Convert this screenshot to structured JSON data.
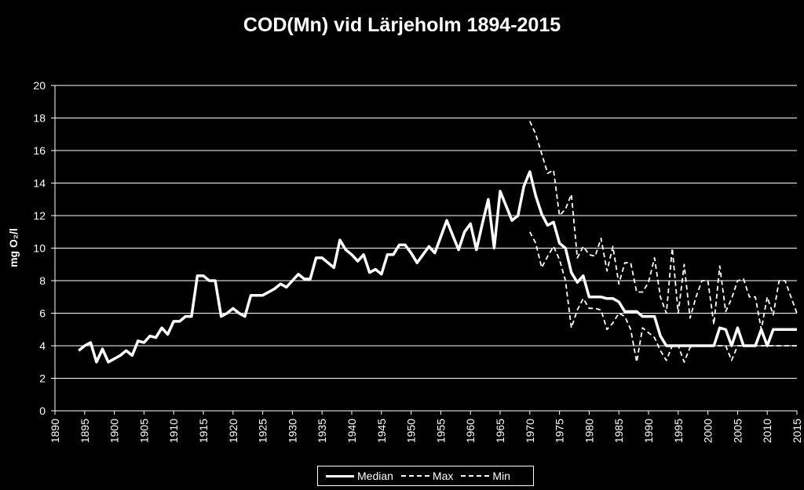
{
  "chart_data": {
    "type": "line",
    "title": "COD(Mn) vid Lärjeholm 1894-2015",
    "ylabel": "mg O₂/l",
    "xlabel": "",
    "xlim": [
      1890,
      2015
    ],
    "ylim": [
      0,
      20
    ],
    "yticks": [
      0,
      2,
      4,
      6,
      8,
      10,
      12,
      14,
      16,
      18,
      20
    ],
    "xticks": [
      1890,
      1895,
      1900,
      1905,
      1910,
      1915,
      1920,
      1925,
      1930,
      1935,
      1940,
      1945,
      1950,
      1955,
      1960,
      1965,
      1970,
      1975,
      1980,
      1985,
      1990,
      1995,
      2000,
      2005,
      2010,
      2015
    ],
    "grid": "horizontal",
    "legend_position": "bottom",
    "series": [
      {
        "name": "Median",
        "style": "solid",
        "points": [
          [
            1894,
            3.7
          ],
          [
            1895,
            4.0
          ],
          [
            1896,
            4.2
          ],
          [
            1897,
            3.0
          ],
          [
            1898,
            3.8
          ],
          [
            1899,
            3.0
          ],
          [
            1900,
            3.2
          ],
          [
            1901,
            3.4
          ],
          [
            1902,
            3.7
          ],
          [
            1903,
            3.4
          ],
          [
            1904,
            4.3
          ],
          [
            1905,
            4.2
          ],
          [
            1906,
            4.6
          ],
          [
            1907,
            4.5
          ],
          [
            1908,
            5.1
          ],
          [
            1909,
            4.7
          ],
          [
            1910,
            5.5
          ],
          [
            1911,
            5.5
          ],
          [
            1912,
            5.8
          ],
          [
            1913,
            5.8
          ],
          [
            1914,
            8.3
          ],
          [
            1915,
            8.3
          ],
          [
            1916,
            8.0
          ],
          [
            1917,
            8.0
          ],
          [
            1918,
            5.8
          ],
          [
            1919,
            6.0
          ],
          [
            1920,
            6.3
          ],
          [
            1921,
            6.0
          ],
          [
            1922,
            5.8
          ],
          [
            1923,
            7.1
          ],
          [
            1924,
            7.1
          ],
          [
            1925,
            7.1
          ],
          [
            1926,
            7.3
          ],
          [
            1927,
            7.5
          ],
          [
            1928,
            7.8
          ],
          [
            1929,
            7.6
          ],
          [
            1930,
            8.0
          ],
          [
            1931,
            8.4
          ],
          [
            1932,
            8.1
          ],
          [
            1933,
            8.1
          ],
          [
            1934,
            9.4
          ],
          [
            1935,
            9.4
          ],
          [
            1936,
            9.1
          ],
          [
            1937,
            8.8
          ],
          [
            1938,
            10.5
          ],
          [
            1939,
            9.9
          ],
          [
            1940,
            9.6
          ],
          [
            1941,
            9.2
          ],
          [
            1942,
            9.6
          ],
          [
            1943,
            8.5
          ],
          [
            1944,
            8.7
          ],
          [
            1945,
            8.4
          ],
          [
            1946,
            9.6
          ],
          [
            1947,
            9.6
          ],
          [
            1948,
            10.2
          ],
          [
            1949,
            10.2
          ],
          [
            1950,
            9.7
          ],
          [
            1951,
            9.1
          ],
          [
            1952,
            9.6
          ],
          [
            1953,
            10.1
          ],
          [
            1954,
            9.7
          ],
          [
            1955,
            10.7
          ],
          [
            1956,
            11.7
          ],
          [
            1957,
            10.8
          ],
          [
            1958,
            9.9
          ],
          [
            1959,
            11.0
          ],
          [
            1960,
            11.5
          ],
          [
            1961,
            9.9
          ],
          [
            1962,
            11.5
          ],
          [
            1963,
            13.0
          ],
          [
            1964,
            10.0
          ],
          [
            1965,
            13.5
          ],
          [
            1966,
            12.6
          ],
          [
            1967,
            11.7
          ],
          [
            1968,
            12.0
          ],
          [
            1969,
            13.8
          ],
          [
            1970,
            14.7
          ],
          [
            1971,
            13.2
          ],
          [
            1972,
            12.1
          ],
          [
            1973,
            11.4
          ],
          [
            1974,
            11.6
          ],
          [
            1975,
            10.3
          ],
          [
            1976,
            10.0
          ],
          [
            1977,
            8.5
          ],
          [
            1978,
            7.9
          ],
          [
            1979,
            8.3
          ],
          [
            1980,
            7.0
          ],
          [
            1981,
            7.0
          ],
          [
            1982,
            7.0
          ],
          [
            1983,
            6.9
          ],
          [
            1984,
            6.9
          ],
          [
            1985,
            6.7
          ],
          [
            1986,
            6.1
          ],
          [
            1987,
            6.1
          ],
          [
            1988,
            6.1
          ],
          [
            1989,
            5.8
          ],
          [
            1990,
            5.8
          ],
          [
            1991,
            5.8
          ],
          [
            1992,
            4.6
          ],
          [
            1993,
            4.0
          ],
          [
            1994,
            4.0
          ],
          [
            1995,
            4.0
          ],
          [
            1996,
            4.0
          ],
          [
            1997,
            4.0
          ],
          [
            1998,
            4.0
          ],
          [
            1999,
            4.0
          ],
          [
            2000,
            4.0
          ],
          [
            2001,
            4.0
          ],
          [
            2002,
            5.1
          ],
          [
            2003,
            5.0
          ],
          [
            2004,
            4.0
          ],
          [
            2005,
            5.1
          ],
          [
            2006,
            4.0
          ],
          [
            2007,
            4.0
          ],
          [
            2008,
            4.0
          ],
          [
            2009,
            5.0
          ],
          [
            2010,
            4.0
          ],
          [
            2011,
            5.0
          ],
          [
            2012,
            5.0
          ],
          [
            2013,
            5.0
          ],
          [
            2014,
            5.0
          ],
          [
            2015,
            5.0
          ]
        ]
      },
      {
        "name": "Max",
        "style": "dashed",
        "points": [
          [
            1970,
            17.8
          ],
          [
            1971,
            17.0
          ],
          [
            1972,
            15.8
          ],
          [
            1973,
            14.6
          ],
          [
            1974,
            14.8
          ],
          [
            1975,
            12.0
          ],
          [
            1976,
            12.4
          ],
          [
            1977,
            13.3
          ],
          [
            1978,
            9.4
          ],
          [
            1979,
            10.1
          ],
          [
            1980,
            9.6
          ],
          [
            1981,
            9.5
          ],
          [
            1982,
            10.6
          ],
          [
            1983,
            8.6
          ],
          [
            1984,
            10.1
          ],
          [
            1985,
            7.8
          ],
          [
            1986,
            9.1
          ],
          [
            1987,
            9.1
          ],
          [
            1988,
            7.3
          ],
          [
            1989,
            7.3
          ],
          [
            1990,
            7.9
          ],
          [
            1991,
            9.4
          ],
          [
            1992,
            7.0
          ],
          [
            1993,
            6.0
          ],
          [
            1994,
            10.0
          ],
          [
            1995,
            6.0
          ],
          [
            1996,
            9.0
          ],
          [
            1997,
            5.7
          ],
          [
            1998,
            7.0
          ],
          [
            1999,
            8.0
          ],
          [
            2000,
            8.0
          ],
          [
            2001,
            5.3
          ],
          [
            2002,
            8.9
          ],
          [
            2003,
            6.1
          ],
          [
            2004,
            6.9
          ],
          [
            2005,
            8.0
          ],
          [
            2006,
            8.1
          ],
          [
            2007,
            7.0
          ],
          [
            2008,
            7.0
          ],
          [
            2009,
            5.0
          ],
          [
            2010,
            7.0
          ],
          [
            2011,
            5.9
          ],
          [
            2012,
            8.0
          ],
          [
            2013,
            8.0
          ],
          [
            2014,
            7.0
          ],
          [
            2015,
            6.0
          ]
        ]
      },
      {
        "name": "Min",
        "style": "dashed",
        "points": [
          [
            1970,
            11.0
          ],
          [
            1971,
            10.3
          ],
          [
            1972,
            8.8
          ],
          [
            1973,
            9.5
          ],
          [
            1974,
            10.1
          ],
          [
            1975,
            9.3
          ],
          [
            1976,
            8.0
          ],
          [
            1977,
            5.1
          ],
          [
            1978,
            6.2
          ],
          [
            1979,
            6.9
          ],
          [
            1980,
            6.3
          ],
          [
            1981,
            6.3
          ],
          [
            1982,
            6.2
          ],
          [
            1983,
            5.0
          ],
          [
            1984,
            5.4
          ],
          [
            1985,
            6.0
          ],
          [
            1986,
            5.8
          ],
          [
            1987,
            5.0
          ],
          [
            1988,
            3.0
          ],
          [
            1989,
            5.1
          ],
          [
            1990,
            4.8
          ],
          [
            1991,
            4.5
          ],
          [
            1992,
            3.7
          ],
          [
            1993,
            3.1
          ],
          [
            1994,
            4.0
          ],
          [
            1995,
            4.0
          ],
          [
            1996,
            3.0
          ],
          [
            1997,
            3.9
          ],
          [
            1998,
            4.0
          ],
          [
            1999,
            4.0
          ],
          [
            2000,
            4.0
          ],
          [
            2001,
            4.0
          ],
          [
            2002,
            4.0
          ],
          [
            2003,
            4.0
          ],
          [
            2004,
            3.1
          ],
          [
            2005,
            4.0
          ],
          [
            2006,
            4.0
          ],
          [
            2007,
            4.0
          ],
          [
            2008,
            4.0
          ],
          [
            2009,
            4.0
          ],
          [
            2010,
            4.0
          ],
          [
            2011,
            4.0
          ],
          [
            2012,
            4.0
          ],
          [
            2013,
            4.0
          ],
          [
            2014,
            4.0
          ],
          [
            2015,
            4.0
          ]
        ]
      }
    ],
    "colors": {
      "background": "#000000",
      "line": "#ffffff",
      "grid": "#ffffff"
    }
  }
}
